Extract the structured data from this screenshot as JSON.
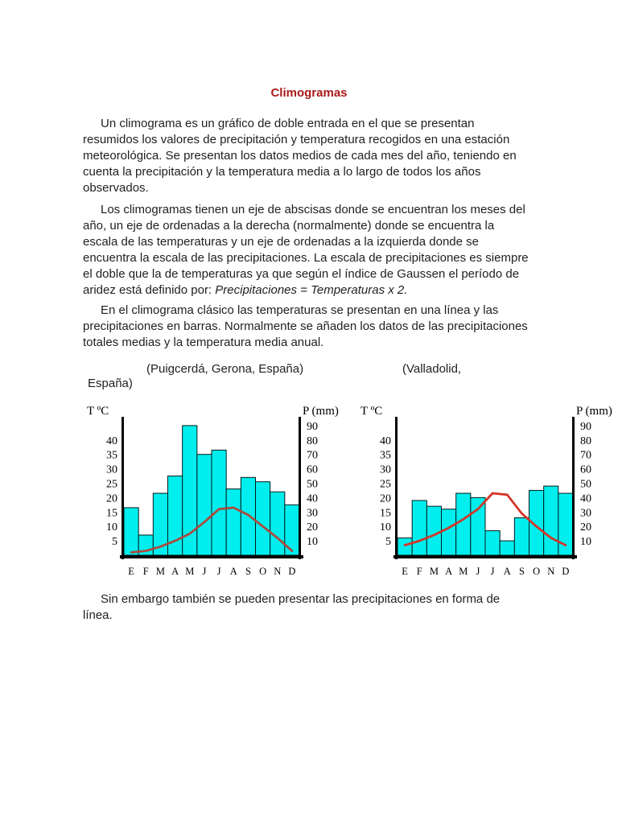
{
  "document": {
    "title": "Climogramas",
    "title_color": "#aa1a1a",
    "paragraphs": {
      "p1": "Un climograma es un gráfico de doble entrada en el que se presentan resumidos los valores de precipitación y temperatura recogidos en una estación meteorológica. Se presentan los datos medios de cada mes del año, teniendo en cuenta la precipitación y la temperatura media a lo largo de todos los años observados.",
      "p2_main": "Los climogramas tienen un eje de abscisas donde se encuentran los meses del año, un eje de ordenadas a la derecha (normalmente) donde se encuentra la escala de las temperaturas y un eje de ordenadas a la izquierda donde se encuentra la escala de las precipitaciones. La escala de precipitaciones es siempre el doble que la de temperaturas ya que según el índice de Gaussen el período de aridez está definido por: ",
      "p2_italic": "Precipitaciones = Temperaturas x 2.",
      "p3": "En el climograma clásico las temperaturas se presentan en una línea y las precipitaciones en barras. Normalmente se añaden los datos de las precipitaciones totales medias y la temperatura media anual.",
      "closing": "Sin embargo también se pueden presentar las precipitaciones en forma de línea."
    },
    "captions": {
      "left": "(Puigcerdá, Gerona, España)",
      "right_line1": "(Valladolid,",
      "right_line2": "España)"
    }
  },
  "chart_data": [
    {
      "type": "bar",
      "subtype": "climograph (precipitation bars + temperature line)",
      "station": "Puigcerdá, Gerona, España",
      "months": [
        "E",
        "F",
        "M",
        "A",
        "M",
        "J",
        "J",
        "A",
        "S",
        "O",
        "N",
        "D"
      ],
      "series": [
        {
          "name": "Precipitación (mm)",
          "values": [
            33,
            14,
            43,
            55,
            90,
            70,
            73,
            46,
            54,
            51,
            44,
            35
          ]
        },
        {
          "name": "Temperatura (ºC)",
          "values": [
            1,
            1.5,
            3,
            5,
            7.5,
            11.5,
            16,
            16.5,
            14,
            10,
            6,
            1.5
          ]
        }
      ],
      "axes": {
        "left_label": "T ºC",
        "right_label": "P (mm)",
        "temp_ticks": [
          40,
          35,
          30,
          25,
          20,
          15,
          10,
          5
        ],
        "precip_ticks": [
          90,
          80,
          70,
          60,
          50,
          40,
          30,
          20,
          10
        ],
        "temp_range": [
          0,
          48
        ],
        "precip_range": [
          0,
          96
        ],
        "grid": false
      },
      "bar_color": "#00eeee",
      "bar_stroke": "#001a1a",
      "line_color": "#ad4a3c"
    },
    {
      "type": "bar",
      "subtype": "climograph (precipitation bars + temperature line)",
      "station": "Valladolid, España",
      "months": [
        "E",
        "F",
        "M",
        "A",
        "M",
        "J",
        "J",
        "A",
        "S",
        "O",
        "N",
        "D"
      ],
      "series": [
        {
          "name": "Precipitación (mm)",
          "values": [
            12,
            38,
            34,
            32,
            43,
            40,
            17,
            10,
            26,
            45,
            48,
            43
          ]
        },
        {
          "name": "Temperatura (ºC)",
          "values": [
            3.5,
            5,
            7,
            9.5,
            12.5,
            16,
            21.5,
            21,
            14.5,
            10,
            6,
            3.5
          ]
        }
      ],
      "axes": {
        "left_label": "T ºC",
        "right_label": "P (mm)",
        "temp_ticks": [
          40,
          35,
          30,
          25,
          20,
          15,
          10,
          5
        ],
        "precip_ticks": [
          90,
          80,
          70,
          60,
          50,
          40,
          30,
          20,
          10
        ],
        "temp_range": [
          0,
          48
        ],
        "precip_range": [
          0,
          96
        ],
        "grid": false
      },
      "bar_color": "#00eeee",
      "bar_stroke": "#001a1a",
      "line_color": "#d43528"
    }
  ]
}
